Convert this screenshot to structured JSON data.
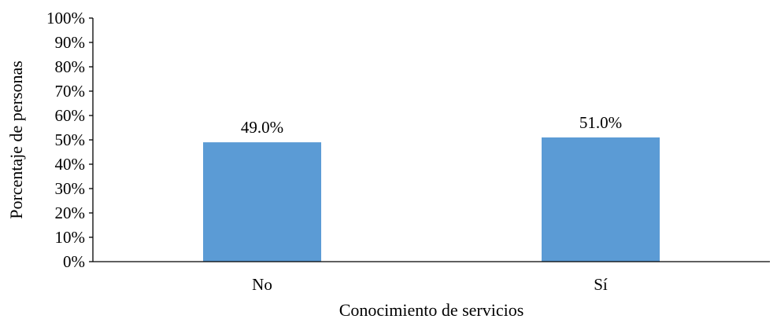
{
  "chart_data": {
    "type": "bar",
    "title": "",
    "xlabel": "Conocimiento de servicios",
    "ylabel": "Porcentaje de personas",
    "categories": [
      "No",
      "Sí"
    ],
    "values": [
      49.0,
      51.0
    ],
    "data_labels": [
      "49.0%",
      "51.0%"
    ],
    "ylim": [
      0,
      100
    ],
    "yticks": [
      0,
      10,
      20,
      30,
      40,
      50,
      60,
      70,
      80,
      90,
      100
    ],
    "ytick_labels": [
      "0%",
      "10%",
      "20%",
      "30%",
      "40%",
      "50%",
      "60%",
      "70%",
      "80%",
      "90%",
      "100%"
    ],
    "grid": false,
    "legend": "none",
    "bar_color": "#5B9BD5",
    "axis_color": "#000000"
  }
}
